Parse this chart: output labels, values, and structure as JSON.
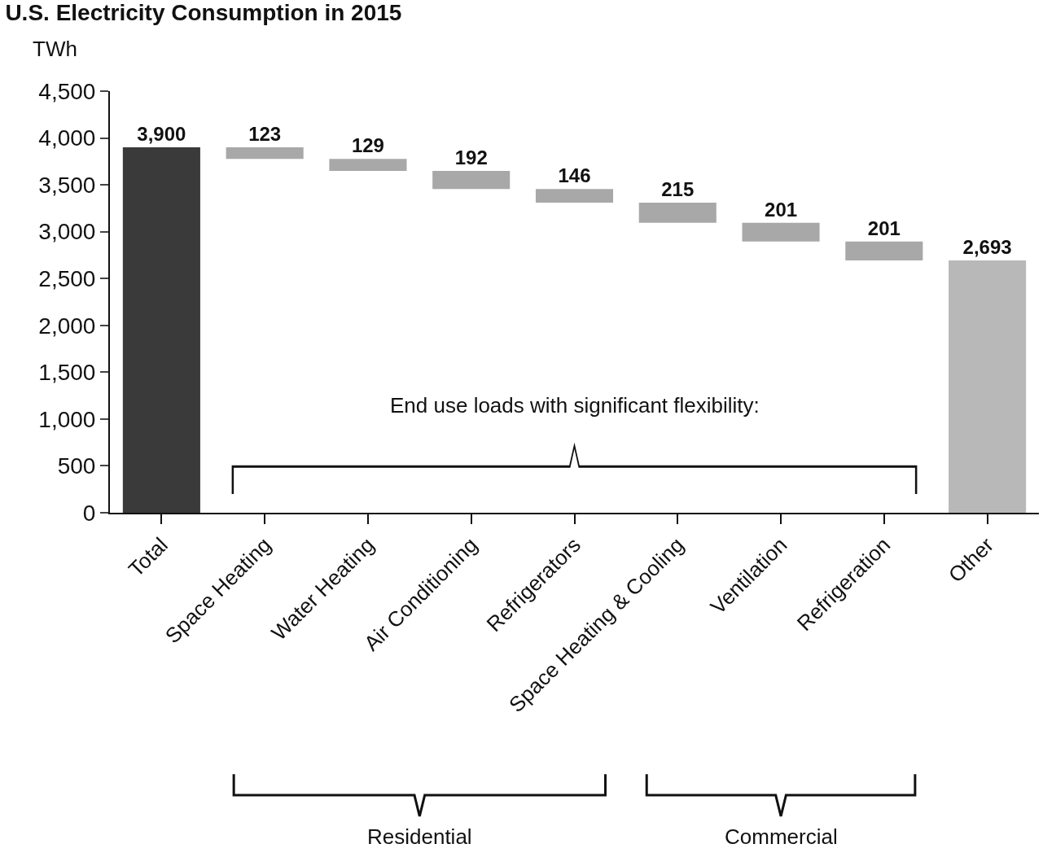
{
  "chart_data": {
    "type": "bar",
    "title": "U.S. Electricity Consumption in 2015",
    "ylabel": "TWh",
    "categories": [
      "Total",
      "Space Heating",
      "Water Heating",
      "Air Conditioning",
      "Refrigerators",
      "Space Heating & Cooling",
      "Ventilation",
      "Refrigeration",
      "Other"
    ],
    "values": [
      3900,
      123,
      129,
      192,
      146,
      215,
      201,
      201,
      2693
    ],
    "base": [
      0,
      3777,
      3648,
      3456,
      3310,
      3095,
      2894,
      2693,
      0
    ],
    "colors": [
      "#3a3a3a",
      "#a8a8a8",
      "#a8a8a8",
      "#a8a8a8",
      "#a8a8a8",
      "#a8a8a8",
      "#a8a8a8",
      "#a8a8a8",
      "#b8b8b8"
    ],
    "value_labels": [
      "3,900",
      "123",
      "129",
      "192",
      "146",
      "215",
      "201",
      "201",
      "2,693"
    ],
    "ylim": [
      0,
      4500
    ],
    "yticks": [
      {
        "value": 0,
        "label": "0"
      },
      {
        "value": 500,
        "label": "500"
      },
      {
        "value": 1000,
        "label": "1,000"
      },
      {
        "value": 1500,
        "label": "1,500"
      },
      {
        "value": 2000,
        "label": "2,000"
      },
      {
        "value": 2500,
        "label": "2,500"
      },
      {
        "value": 3000,
        "label": "3,000"
      },
      {
        "value": 3500,
        "label": "3,500"
      },
      {
        "value": 4000,
        "label": "4,000"
      },
      {
        "value": 4500,
        "label": "4,500"
      }
    ],
    "annotations": [
      "End use loads with significant flexibility:",
      "Residential",
      "Commercial"
    ]
  }
}
